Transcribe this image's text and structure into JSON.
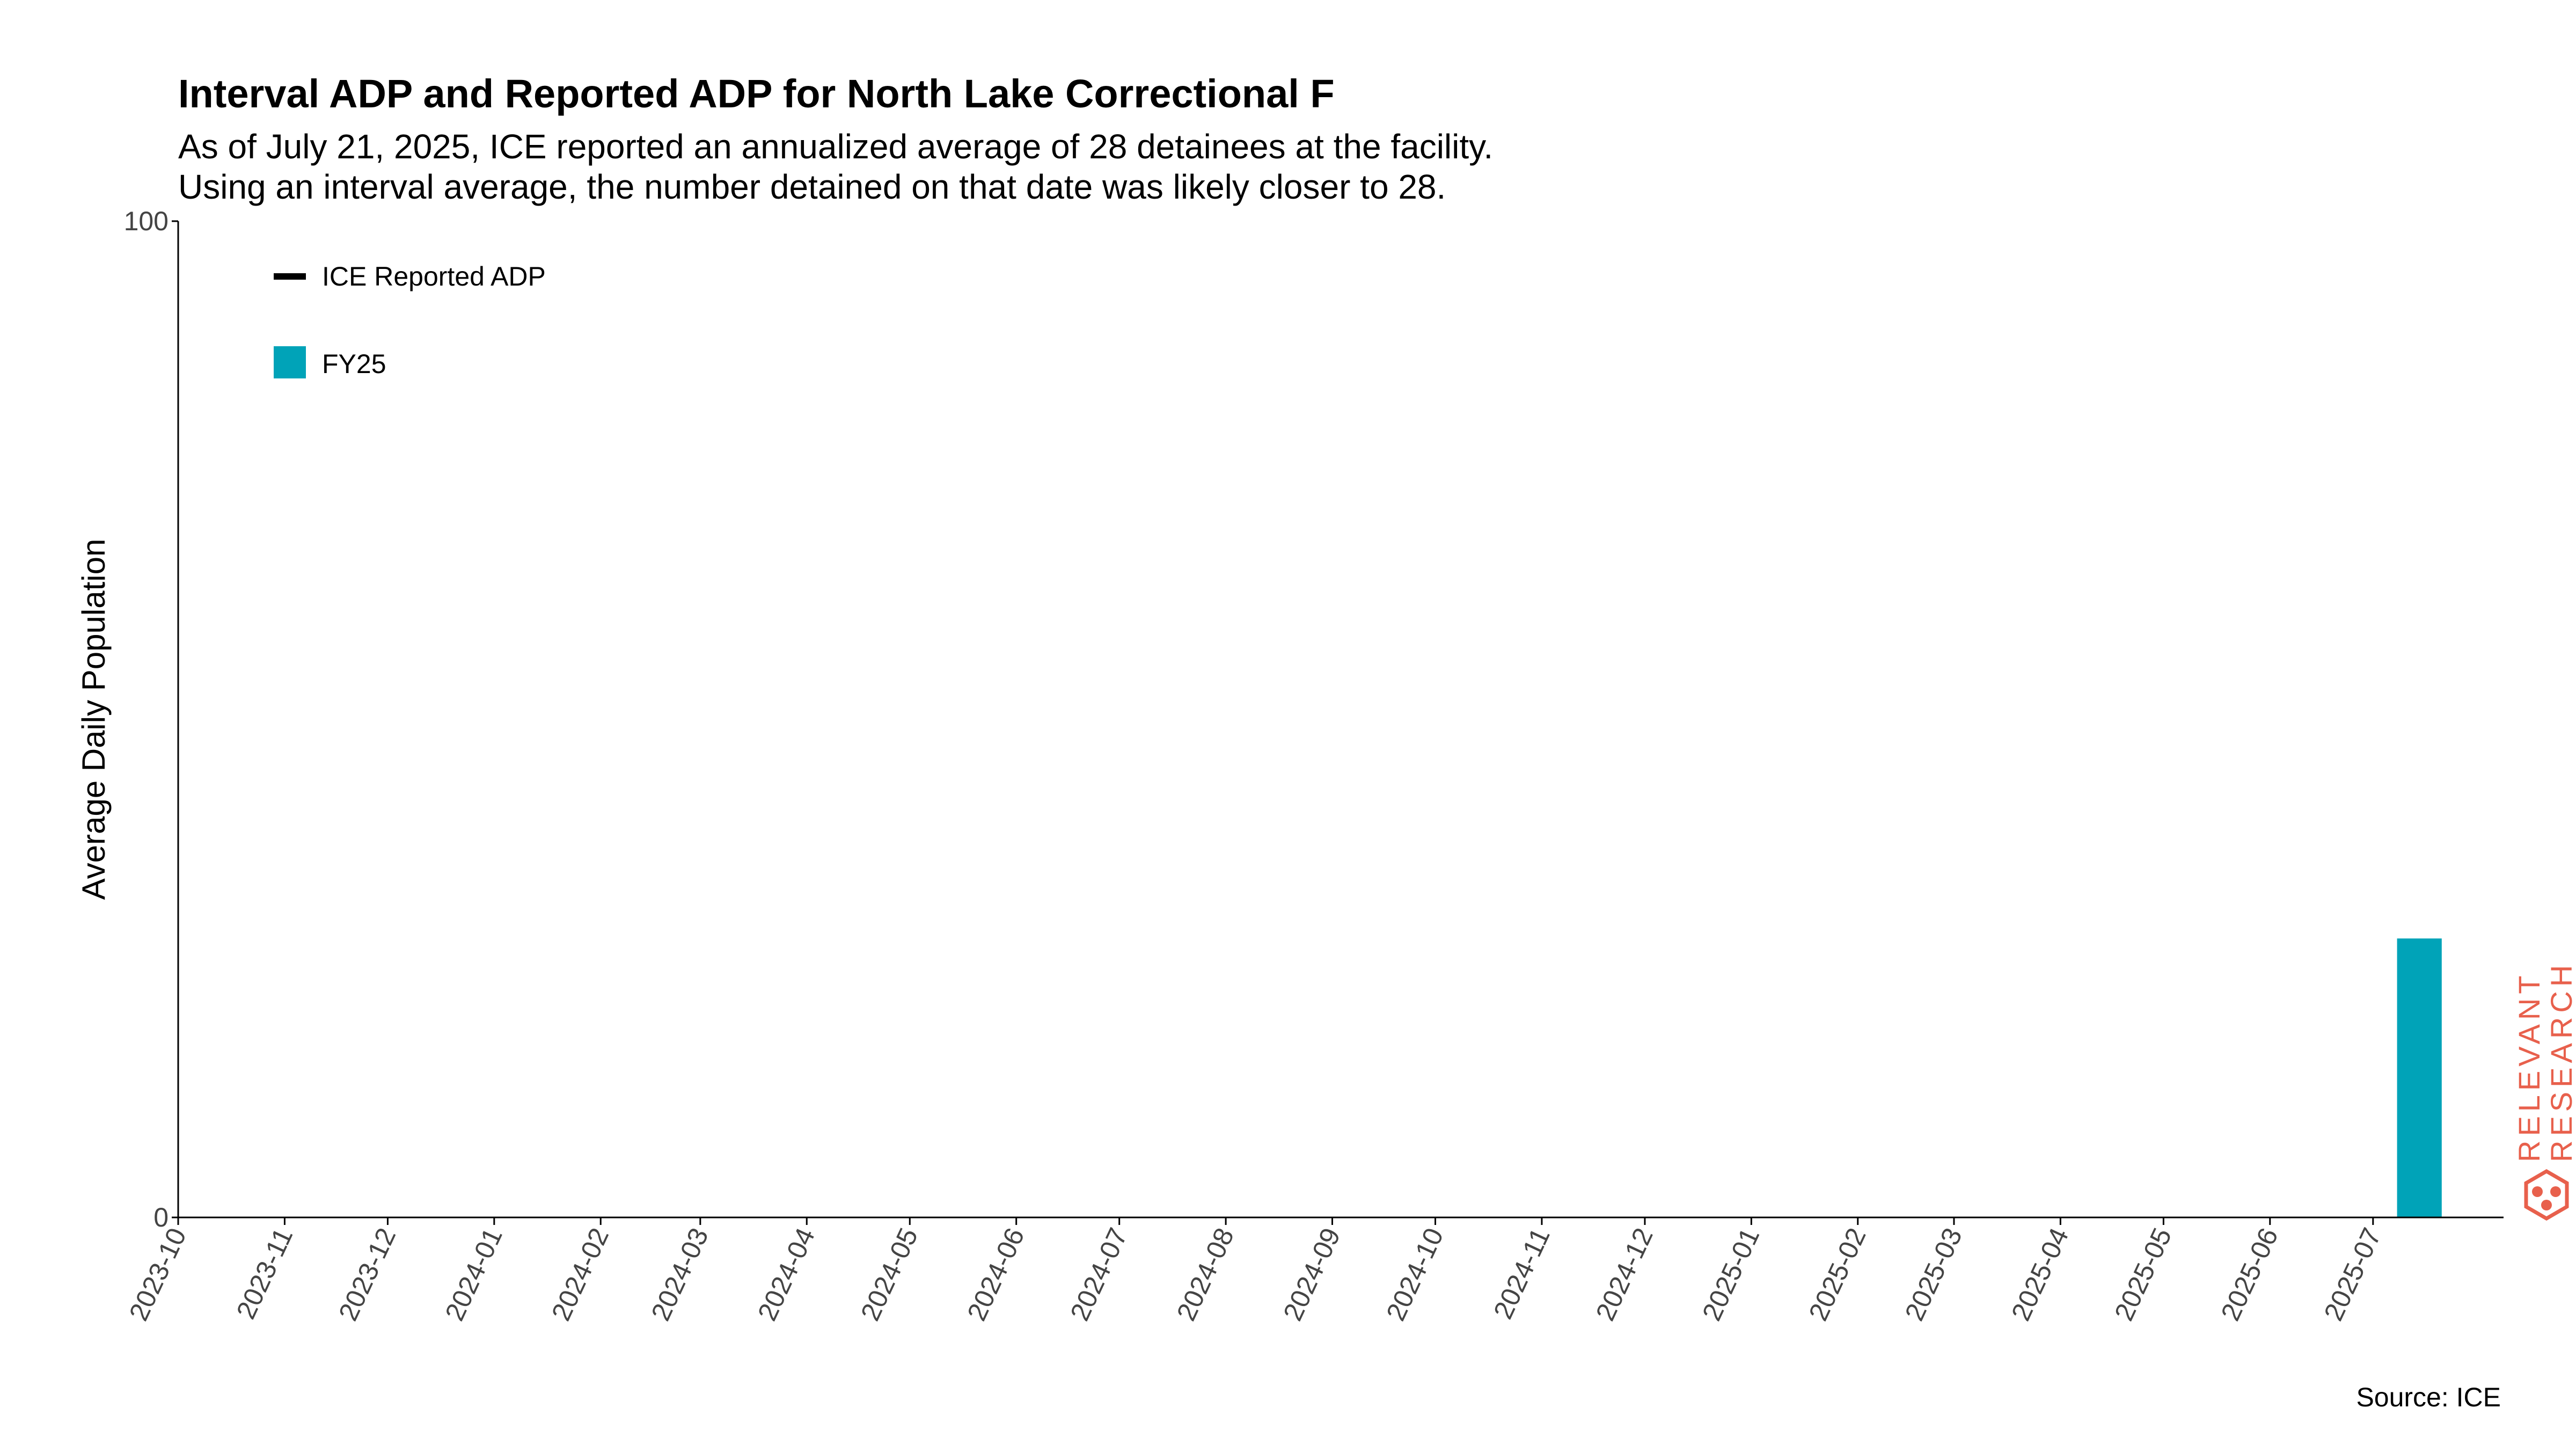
{
  "chart_data": {
    "type": "bar",
    "title": "Interval ADP and Reported ADP for North Lake Correctional F",
    "subtitle_lines": [
      "As of July 21, 2025, ICE reported an annualized average of 28 detainees at the facility.",
      "Using an interval average, the number detained on that date was likely closer to 28."
    ],
    "ylabel": "Average Daily Population",
    "ylim": [
      0,
      100
    ],
    "yticks": [
      "0",
      "100"
    ],
    "x_ticks": [
      "2023-10",
      "2023-11",
      "2023-12",
      "2024-01",
      "2024-02",
      "2024-03",
      "2024-04",
      "2024-05",
      "2024-06",
      "2024-07",
      "2024-08",
      "2024-09",
      "2024-10",
      "2024-11",
      "2024-12",
      "2025-01",
      "2025-02",
      "2025-03",
      "2025-04",
      "2025-05",
      "2025-06",
      "2025-07"
    ],
    "xlim": [
      "2023-10-01",
      "2025-08-08"
    ],
    "series": [
      {
        "name": "FY25",
        "color": "#00A3B8",
        "bars": [
          {
            "start": "2025-07-08",
            "end": "2025-07-21",
            "value": 28
          }
        ]
      }
    ],
    "reported_line": {
      "name": "ICE Reported ADP",
      "color": "#000000",
      "value": 28
    },
    "legend": [
      {
        "label": "ICE Reported ADP",
        "kind": "line",
        "color": "#000000"
      },
      {
        "label": "FY25",
        "kind": "patch",
        "color": "#00A3B8"
      }
    ],
    "legend_placement": "top-left",
    "grid": false
  },
  "footer": {
    "source": "Source: ICE"
  },
  "brand": {
    "line1": "RELEVANT",
    "line2": "RESEARCH",
    "color": "#e8604c",
    "icon": "relevant-research-logo-icon"
  }
}
